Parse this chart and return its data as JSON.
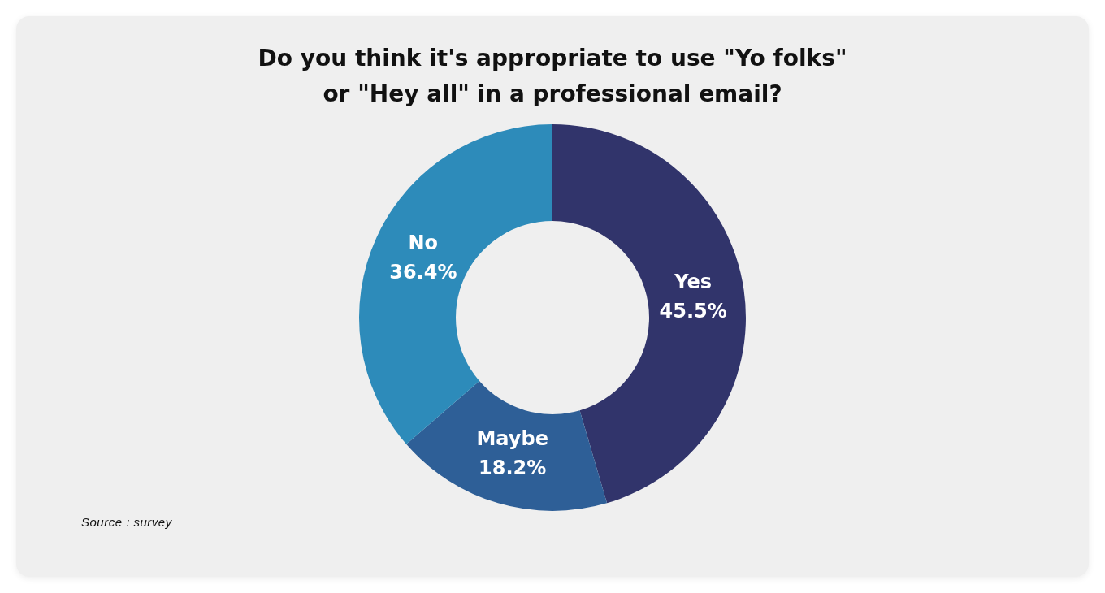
{
  "chart_data": {
    "type": "donut",
    "title": "Do you think it's appropriate to use \"Yo folks\" or \"Hey all\" in a professional email?",
    "categories": [
      "Yes",
      "Maybe",
      "No"
    ],
    "values": [
      45.5,
      18.2,
      36.4
    ],
    "colors": [
      "#31346b",
      "#2e5f97",
      "#2d8bba"
    ],
    "value_labels": [
      "45.5%",
      "18.2%",
      "36.4%"
    ],
    "legend": false,
    "annotations": [
      "Source : survey"
    ]
  }
}
